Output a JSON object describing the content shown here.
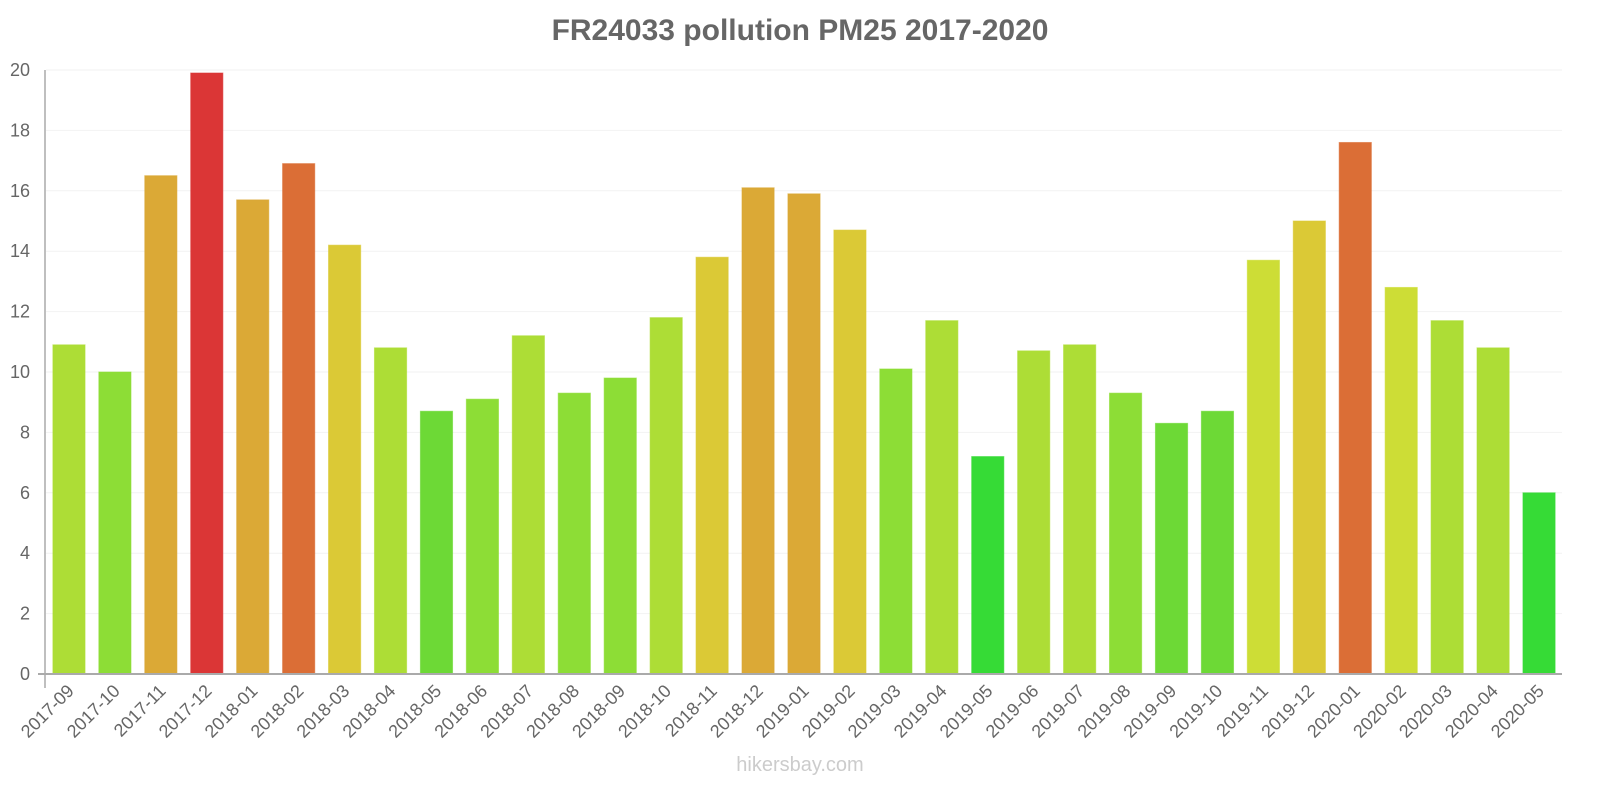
{
  "title": "FR24033 pollution PM25 2017-2020",
  "watermark": "hikersbay.com",
  "chart_data": {
    "type": "bar",
    "title": "FR24033 pollution PM25 2017-2020",
    "xlabel": "",
    "ylabel": "",
    "ylim": [
      0,
      20
    ],
    "yticks": [
      0,
      2,
      4,
      6,
      8,
      10,
      12,
      14,
      16,
      18,
      20
    ],
    "grid": true,
    "legend": null,
    "categories": [
      "2017-09",
      "2017-10",
      "2017-11",
      "2017-12",
      "2018-01",
      "2018-02",
      "2018-03",
      "2018-04",
      "2018-05",
      "2018-06",
      "2018-07",
      "2018-08",
      "2018-09",
      "2018-10",
      "2018-11",
      "2018-12",
      "2019-01",
      "2019-02",
      "2019-03",
      "2019-04",
      "2019-05",
      "2019-06",
      "2019-07",
      "2019-08",
      "2019-09",
      "2019-10",
      "2019-11",
      "2019-12",
      "2020-01",
      "2020-02",
      "2020-03",
      "2020-04",
      "2020-05"
    ],
    "values": [
      10.9,
      10.0,
      16.5,
      19.9,
      15.7,
      16.9,
      14.2,
      10.8,
      8.7,
      9.1,
      11.2,
      9.3,
      9.8,
      11.8,
      13.8,
      16.1,
      15.9,
      14.7,
      10.1,
      11.7,
      7.2,
      10.7,
      10.9,
      9.3,
      8.3,
      8.7,
      13.7,
      15.0,
      17.6,
      12.8,
      11.7,
      10.8,
      6.0
    ],
    "colors": [
      "#addd36",
      "#8ddd36",
      "#dba936",
      "#db3636",
      "#dba936",
      "#db6e36",
      "#dbc936",
      "#addd36",
      "#6dd936",
      "#8ddd36",
      "#addd36",
      "#8ddd36",
      "#8ddd36",
      "#addd36",
      "#dbc936",
      "#dba936",
      "#dba936",
      "#dbc936",
      "#8ddd36",
      "#addd36",
      "#36db36",
      "#addd36",
      "#addd36",
      "#8ddd36",
      "#6dd936",
      "#6dd936",
      "#cddd36",
      "#dbc936",
      "#db6e36",
      "#cddd36",
      "#addd36",
      "#addd36",
      "#36db36"
    ]
  },
  "colors": {
    "title": "#666666",
    "axis": "#aaaaaa",
    "grid": "#f2f2f2",
    "tick_text": "#666666",
    "watermark": "#cccccc"
  }
}
